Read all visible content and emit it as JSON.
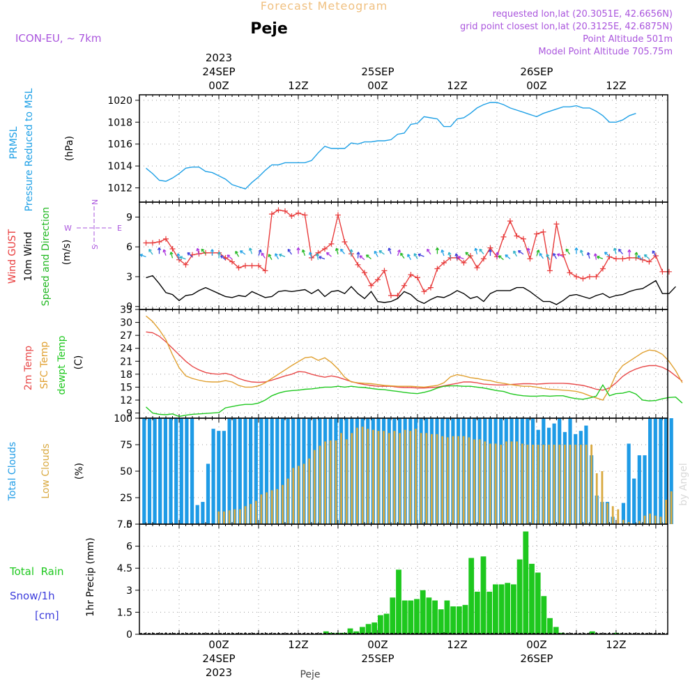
{
  "header": {
    "product_title": "Forecast Meteogram",
    "location": "Peje",
    "model": "ICON-EU, ~ 7km",
    "requested_point": "requested lon,lat (20.3051E, 42.6656N)",
    "grid_point": "grid point closest lon,lat (20.3125E, 42.6875N)",
    "point_altitude": "Point Altitude 501m",
    "model_point_altitude": "Model Point Altitude 705.75m",
    "footer_location": "Peje",
    "credit": "by Angel"
  },
  "colors": {
    "prmsl": "#1ea0e6",
    "gust": "#e83a3a",
    "wind10m": "#000000",
    "wind_dir": "#22b822",
    "temp2m": "#e84848",
    "sfc_temp": "#e0a030",
    "dewpt": "#1ec81e",
    "total_clouds": "#1e9be6",
    "low_clouds": "#d9a940",
    "rain": "#1ec81e",
    "snow": "#3c3cdc",
    "header_purple": "#aa55dd",
    "title_orange": "#f0c080",
    "arrow_palette": [
      "#1ea0e6",
      "#2ab0c8",
      "#3c3cdc",
      "#aa33dd",
      "#22b822"
    ]
  },
  "time_axis": {
    "top_labels": [
      {
        "t": 0,
        "lines": [
          "2023",
          "24SEP",
          "00Z"
        ]
      },
      {
        "t": 12,
        "lines": [
          "12Z"
        ]
      },
      {
        "t": 24,
        "lines": [
          "25SEP",
          "00Z"
        ]
      },
      {
        "t": 36,
        "lines": [
          "12Z"
        ]
      },
      {
        "t": 48,
        "lines": [
          "26SEP",
          "00Z"
        ]
      },
      {
        "t": 60,
        "lines": [
          "12Z"
        ]
      }
    ],
    "bottom_labels": [
      {
        "t": 0,
        "lines": [
          "00Z",
          "24SEP",
          "2023"
        ]
      },
      {
        "t": 12,
        "lines": [
          "12Z"
        ]
      },
      {
        "t": 24,
        "lines": [
          "00Z",
          "25SEP"
        ]
      },
      {
        "t": 36,
        "lines": [
          "12Z"
        ]
      },
      {
        "t": 48,
        "lines": [
          "00Z",
          "26SEP"
        ]
      },
      {
        "t": 60,
        "lines": [
          "12Z"
        ]
      }
    ]
  },
  "chart_data": [
    {
      "id": "pressure",
      "type": "line",
      "ylabels": [
        "PRMSL",
        "Pressure Reduced to MSL"
      ],
      "unit": "(hPa)",
      "ylim": [
        1010.7,
        1020.5
      ],
      "yticks": [
        1012,
        1014,
        1016,
        1018,
        1020
      ],
      "grid": true,
      "x_start": -11,
      "series": [
        {
          "name": "PRMSL",
          "values": [
            1013.8,
            1013.3,
            1012.7,
            1012.6,
            1012.9,
            1013.3,
            1013.8,
            1013.9,
            1013.9,
            1013.5,
            1013.4,
            1013.1,
            1012.8,
            1012.3,
            1012.1,
            1011.9,
            1012.5,
            1013.0,
            1013.6,
            1014.1,
            1014.1,
            1014.3,
            1014.3,
            1014.3,
            1014.3,
            1014.5,
            1015.2,
            1015.8,
            1015.6,
            1015.6,
            1015.6,
            1016.1,
            1016.0,
            1016.2,
            1016.2,
            1016.3,
            1016.3,
            1016.4,
            1016.9,
            1017.0,
            1017.8,
            1017.9,
            1018.5,
            1018.4,
            1018.3,
            1017.6,
            1017.6,
            1018.3,
            1018.4,
            1018.8,
            1019.3,
            1019.6,
            1019.8,
            1019.8,
            1019.6,
            1019.3,
            1019.1,
            1018.9,
            1018.7,
            1018.5,
            1018.8,
            1019.0,
            1019.2,
            1019.4,
            1019.4,
            1019.5,
            1019.3,
            1019.3,
            1019.0,
            1018.6,
            1018.0,
            1018.0,
            1018.2,
            1018.6,
            1018.8
          ]
        }
      ]
    },
    {
      "id": "wind",
      "type": "line",
      "ylabels": [
        "Wind GUST",
        "10m Wind",
        "Speed and Direction"
      ],
      "unit": "(m/s)",
      "compass": {
        "n": "N",
        "s": "S",
        "e": "E",
        "w": "W"
      },
      "ylim": [
        -0.3,
        10.5
      ],
      "yticks": [
        0,
        3,
        6,
        9
      ],
      "grid": true,
      "x_start": -11,
      "series": [
        {
          "name": "Wind GUST",
          "values": [
            6.4,
            6.4,
            6.5,
            6.8,
            5.8,
            4.7,
            4.2,
            5.2,
            5.3,
            5.4,
            5.4,
            5.4,
            4.9,
            4.5,
            3.9,
            4.1,
            4.1,
            4.1,
            3.6,
            9.3,
            9.7,
            9.6,
            9.1,
            9.4,
            9.2,
            4.9,
            5.4,
            5.8,
            6.3,
            9.2,
            6.5,
            5.3,
            4.2,
            3.4,
            2.1,
            2.7,
            3.6,
            1.1,
            1.1,
            2.1,
            3.2,
            2.9,
            1.5,
            1.9,
            3.8,
            4.4,
            4.9,
            4.9,
            4.4,
            5.1,
            3.9,
            4.8,
            5.9,
            5.0,
            7.0,
            8.6,
            7.1,
            6.8,
            4.8,
            7.3,
            7.5,
            3.6,
            8.3,
            5.2,
            3.4,
            3.0,
            2.8,
            3.0,
            3.0,
            3.8,
            5.0,
            4.8,
            4.8,
            4.9,
            4.9,
            4.7,
            4.5,
            5.1,
            3.5,
            3.5
          ]
        },
        {
          "name": "10m Wind",
          "values": [
            2.9,
            3.1,
            2.3,
            1.4,
            1.2,
            0.6,
            1.1,
            1.2,
            1.6,
            1.9,
            1.6,
            1.3,
            1.0,
            0.9,
            1.1,
            1.0,
            1.5,
            1.2,
            0.9,
            1.0,
            1.5,
            1.6,
            1.5,
            1.6,
            1.7,
            1.3,
            1.7,
            1.0,
            1.5,
            1.6,
            1.3,
            2.0,
            1.3,
            0.8,
            1.5,
            0.5,
            0.4,
            0.5,
            0.8,
            1.5,
            1.2,
            0.6,
            0.3,
            0.7,
            1.0,
            0.9,
            1.2,
            1.6,
            1.3,
            0.8,
            1.0,
            0.5,
            1.3,
            1.6,
            1.6,
            1.6,
            1.9,
            1.9,
            1.5,
            1.0,
            0.5,
            0.5,
            0.2,
            0.6,
            1.1,
            1.2,
            1.0,
            0.8,
            1.1,
            1.3,
            0.9,
            1.1,
            1.2,
            1.5,
            1.7,
            1.8,
            2.2,
            2.6,
            1.3,
            1.3,
            2.0
          ]
        }
      ]
    },
    {
      "id": "temperature",
      "type": "line",
      "ylabels": [
        "2m Temp",
        "SFC Temp",
        "dewpt Temp"
      ],
      "unit": "(C)",
      "ylim": [
        7.8,
        33
      ],
      "yticks": [
        9,
        12,
        15,
        18,
        21,
        24,
        27,
        30,
        33
      ],
      "grid": true,
      "x_start": -11,
      "series": [
        {
          "name": "2m Temp",
          "values": [
            27.8,
            27.6,
            26.8,
            25.5,
            24.0,
            22.5,
            21.0,
            19.8,
            19.0,
            18.4,
            18.1,
            18.0,
            18.2,
            17.8,
            17.0,
            16.5,
            16.2,
            16.1,
            16.2,
            16.6,
            17.1,
            17.6,
            18.0,
            18.6,
            18.5,
            18.0,
            17.6,
            17.3,
            17.6,
            17.3,
            16.8,
            16.3,
            15.9,
            15.6,
            15.4,
            15.2,
            15.2,
            15.2,
            15.0,
            14.9,
            14.9,
            14.8,
            14.8,
            14.9,
            15.0,
            15.3,
            15.6,
            15.9,
            16.2,
            16.2,
            16.0,
            15.7,
            15.6,
            15.5,
            15.5,
            15.6,
            15.7,
            15.8,
            15.8,
            15.7,
            15.8,
            15.9,
            15.9,
            15.9,
            15.8,
            15.6,
            15.4,
            15.0,
            14.5,
            14.3,
            14.8,
            16.0,
            17.5,
            18.5,
            19.2,
            19.7,
            20.0,
            20.0,
            19.6,
            18.8,
            17.6,
            16.4
          ]
        },
        {
          "name": "SFC Temp",
          "values": [
            31.5,
            30.2,
            28.3,
            26.0,
            22.5,
            19.5,
            17.6,
            17.0,
            16.6,
            16.3,
            16.2,
            16.2,
            16.5,
            16.2,
            15.4,
            15.0,
            15.0,
            15.3,
            16.0,
            17.0,
            18.0,
            19.0,
            20.0,
            20.9,
            21.8,
            22.0,
            21.2,
            21.8,
            20.7,
            19.2,
            17.3,
            16.2,
            16.0,
            15.9,
            15.8,
            15.6,
            15.4,
            15.3,
            15.2,
            15.2,
            15.2,
            15.1,
            15.0,
            15.2,
            15.4,
            16.0,
            17.4,
            17.9,
            17.6,
            17.2,
            17.0,
            16.7,
            16.5,
            16.1,
            15.9,
            15.6,
            15.4,
            15.2,
            15.2,
            15.0,
            14.7,
            14.5,
            14.4,
            14.3,
            14.2,
            14.0,
            13.6,
            13.0,
            12.5,
            12.0,
            14.5,
            18.0,
            20.0,
            21.0,
            22.0,
            23.0,
            23.6,
            23.4,
            22.6,
            21.0,
            18.8,
            16.0
          ]
        },
        {
          "name": "dewpt Temp",
          "values": [
            10.4,
            9.0,
            8.7,
            8.6,
            8.8,
            8.2,
            8.5,
            8.7,
            8.8,
            8.9,
            9.0,
            9.1,
            10.2,
            10.5,
            10.8,
            11.0,
            11.0,
            11.3,
            12.0,
            13.0,
            13.6,
            14.0,
            14.2,
            14.3,
            14.5,
            14.6,
            14.8,
            15.0,
            15.0,
            15.2,
            15.0,
            15.2,
            15.0,
            14.9,
            14.7,
            14.5,
            14.4,
            14.2,
            14.0,
            13.8,
            13.6,
            13.5,
            13.8,
            14.2,
            14.8,
            15.2,
            15.3,
            15.3,
            15.2,
            15.2,
            15.0,
            14.8,
            14.5,
            14.2,
            14.0,
            13.5,
            13.2,
            13.0,
            12.9,
            12.9,
            13.0,
            12.9,
            13.0,
            13.0,
            12.6,
            12.3,
            12.2,
            12.5,
            12.9,
            15.5,
            13.0,
            13.5,
            13.6,
            14.0,
            13.4,
            12.0,
            11.8,
            11.9,
            12.3,
            12.6,
            12.7,
            11.3
          ]
        }
      ]
    },
    {
      "id": "clouds",
      "type": "bar",
      "ylabels": [
        "Total Clouds",
        "Low Clouds"
      ],
      "unit": "(%)",
      "ylim": [
        0,
        100
      ],
      "yticks": [
        0,
        25,
        50,
        75,
        100
      ],
      "grid": true,
      "x_start": -11,
      "series": [
        {
          "name": "Total Clouds",
          "values": [
            100,
            100,
            100,
            100,
            100,
            100,
            100,
            100,
            100,
            100,
            18,
            21,
            57,
            90,
            88,
            88,
            100,
            100,
            100,
            100,
            100,
            100,
            100,
            100,
            100,
            100,
            100,
            100,
            100,
            100,
            100,
            100,
            100,
            100,
            100,
            100,
            100,
            100,
            100,
            100,
            100,
            100,
            100,
            100,
            100,
            100,
            100,
            100,
            100,
            100,
            100,
            100,
            100,
            100,
            100,
            100,
            100,
            100,
            100,
            100,
            100,
            100,
            100,
            100,
            100,
            100,
            100,
            100,
            100,
            100,
            100,
            100,
            100,
            100,
            89,
            100,
            91,
            95,
            100,
            87,
            100,
            85,
            88,
            93,
            65,
            27,
            21,
            21,
            7,
            0,
            20,
            76,
            43,
            65,
            65,
            100,
            100,
            100,
            100,
            100
          ]
        },
        {
          "name": "Low Clouds",
          "values": [
            0,
            0,
            0,
            0,
            0,
            0,
            0,
            0,
            0,
            0,
            0,
            0,
            0,
            0,
            12,
            12,
            13,
            14,
            14,
            17,
            19,
            22,
            28,
            30,
            32,
            33,
            37,
            43,
            53,
            55,
            57,
            62,
            70,
            74,
            78,
            79,
            79,
            86,
            80,
            86,
            91,
            92,
            90,
            89,
            88,
            88,
            86,
            88,
            86,
            89,
            88,
            90,
            86,
            86,
            85,
            85,
            83,
            82,
            83,
            83,
            83,
            82,
            80,
            80,
            78,
            76,
            76,
            75,
            78,
            78,
            78,
            76,
            75,
            75,
            75,
            75,
            75,
            75,
            75,
            75,
            75,
            75,
            75,
            75,
            75,
            48,
            50,
            20,
            17,
            14,
            4,
            2,
            0,
            3,
            8,
            10,
            8,
            7,
            23,
            31
          ]
        }
      ]
    },
    {
      "id": "precip",
      "type": "bar",
      "ylabels": [
        "1hr Precip (mm)"
      ],
      "side_labels": {
        "rain": "Total  Rain",
        "snow": "Snow/1h",
        "snow_unit": "[cm]"
      },
      "ylim": [
        0,
        7.5
      ],
      "yticks": [
        0,
        1.5,
        3,
        4.5,
        6,
        7.5
      ],
      "grid": true,
      "x_start": -11,
      "series": [
        {
          "name": "Total Rain",
          "values": [
            0,
            0,
            0,
            0,
            0,
            0,
            0,
            0,
            0,
            0,
            0,
            0,
            0,
            0,
            0,
            0,
            0,
            0,
            0,
            0,
            0,
            0,
            0,
            0,
            0,
            0,
            0,
            0,
            0,
            0,
            0.2,
            0.1,
            0.1,
            0.1,
            0.4,
            0.2,
            0.5,
            0.7,
            0.8,
            1.3,
            1.4,
            2.5,
            4.4,
            2.3,
            2.3,
            2.4,
            3.0,
            2.5,
            2.3,
            1.7,
            2.3,
            1.9,
            1.9,
            2.0,
            5.2,
            2.9,
            5.3,
            2.9,
            3.4,
            3.4,
            3.5,
            3.4,
            5.1,
            7.0,
            4.8,
            4.2,
            2.6,
            1.1,
            0.5,
            0.1,
            0,
            0,
            0,
            0,
            0.2,
            0,
            0,
            0,
            0.1,
            0,
            0,
            0,
            0,
            0,
            0,
            0,
            0,
            0
          ]
        },
        {
          "name": "Snow/1h",
          "values": []
        }
      ]
    }
  ]
}
